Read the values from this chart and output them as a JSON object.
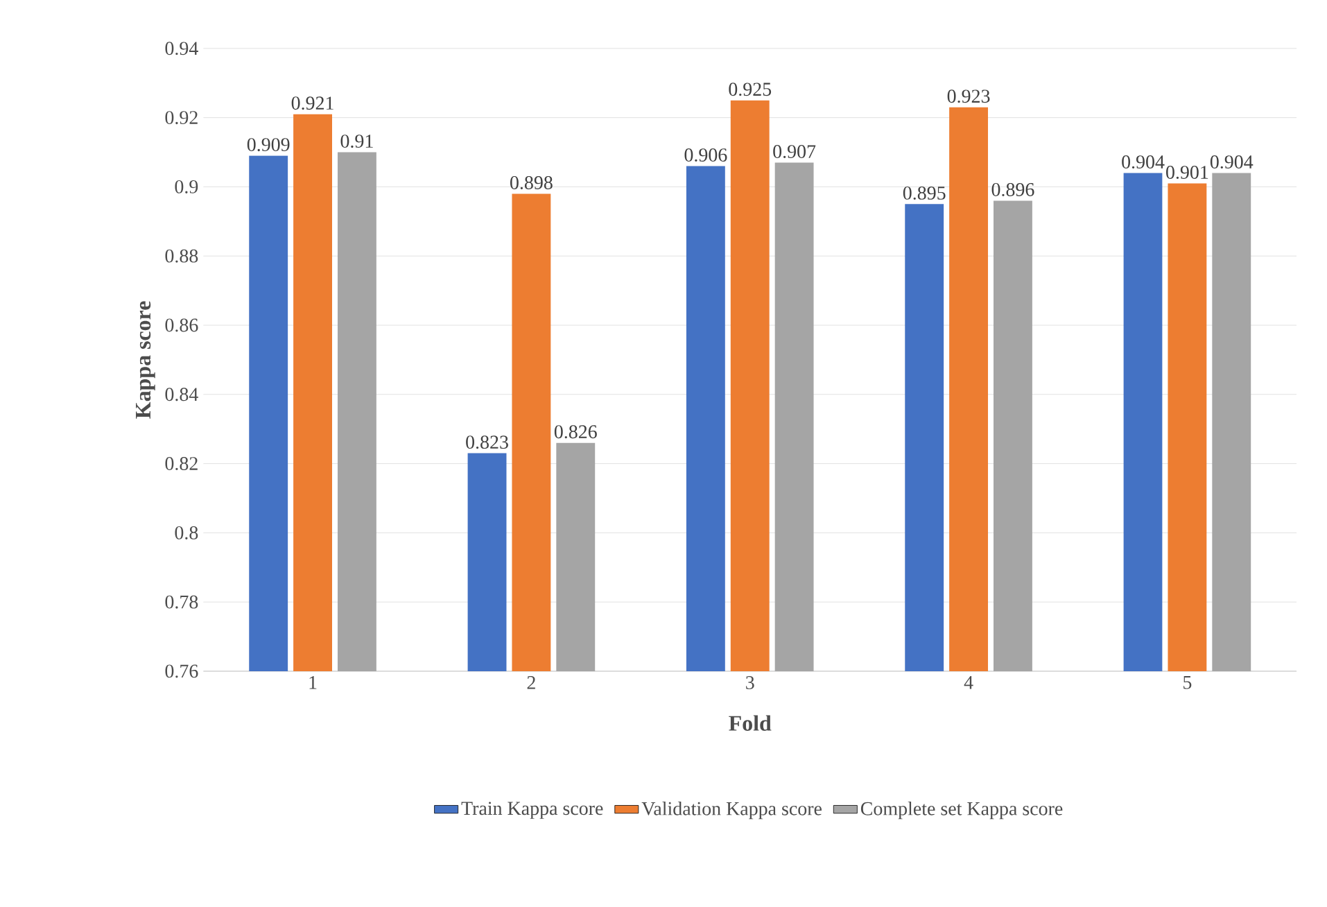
{
  "chart_data": {
    "type": "bar",
    "xlabel": "Fold",
    "ylabel": "Kappa score",
    "categories": [
      "1",
      "2",
      "3",
      "4",
      "5"
    ],
    "series": [
      {
        "name": "Train Kappa score",
        "color": "#4472c4",
        "values": [
          0.909,
          0.823,
          0.906,
          0.895,
          0.904
        ]
      },
      {
        "name": "Validation Kappa score",
        "color": "#ed7d31",
        "values": [
          0.921,
          0.898,
          0.925,
          0.923,
          0.901
        ]
      },
      {
        "name": "Complete set Kappa score",
        "color": "#a5a5a5",
        "values": [
          0.91,
          0.826,
          0.907,
          0.896,
          0.904
        ]
      }
    ],
    "ylim": [
      0.76,
      0.94
    ],
    "yticks": [
      0.76,
      0.78,
      0.8,
      0.82,
      0.84,
      0.86,
      0.88,
      0.9,
      0.92,
      0.94
    ],
    "grid": "y",
    "legend": "bottom",
    "data_labels": true
  }
}
